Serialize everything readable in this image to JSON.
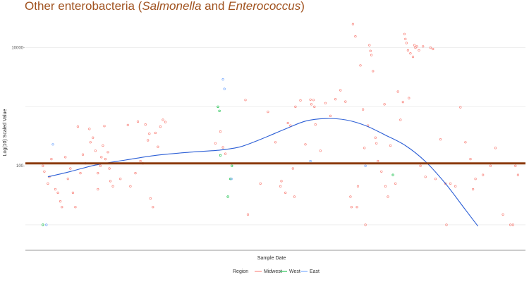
{
  "chart_data": {
    "type": "scatter",
    "title": {
      "prefix": "Other enterobacteria (",
      "italic1": "Salmonella",
      "middle": " and ",
      "italic2": "Enterococcus",
      "suffix": ")"
    },
    "xlabel": "Sample Date",
    "ylabel": "Log(10) Scaled Value",
    "y_scale": "log10",
    "ylim": [
      4.5,
      35000
    ],
    "grid": true,
    "y_ticks": [
      {
        "value": 100,
        "label": "100-"
      },
      {
        "value": 10000,
        "label": "10000-"
      }
    ],
    "y_gridlines": [
      10,
      100,
      1000,
      10000
    ],
    "x_date_labels_shown": false,
    "xlim": [
      0,
      100
    ],
    "reference_line": {
      "value": 110,
      "color": "#8b3a0e"
    },
    "legend": {
      "title": "Region",
      "position": "bottom",
      "entries": [
        {
          "name": "Midwest",
          "color": "#f8766d"
        },
        {
          "name": "West",
          "color": "#00ba38"
        },
        {
          "name": "East",
          "color": "#619cff"
        }
      ]
    },
    "trend_line": {
      "color": "#2c5fd6",
      "points": [
        [
          4.5,
          65
        ],
        [
          9,
          80
        ],
        [
          14,
          103
        ],
        [
          20,
          125
        ],
        [
          26,
          150
        ],
        [
          33,
          170
        ],
        [
          39,
          185
        ],
        [
          43,
          210
        ],
        [
          47,
          280
        ],
        [
          52,
          420
        ],
        [
          56,
          570
        ],
        [
          60,
          630
        ],
        [
          64,
          600
        ],
        [
          68,
          480
        ],
        [
          72,
          330
        ],
        [
          76,
          220
        ],
        [
          80,
          118
        ],
        [
          84,
          50
        ],
        [
          88,
          18
        ],
        [
          90.5,
          9.5
        ]
      ]
    },
    "series": [
      {
        "name": "Midwest",
        "color": "#f8766d",
        "points": [
          [
            3.5,
            100
          ],
          [
            3.8,
            80
          ],
          [
            4.5,
            50
          ],
          [
            4.8,
            65
          ],
          [
            5.2,
            130
          ],
          [
            6,
            40
          ],
          [
            6.5,
            35
          ],
          [
            7,
            25
          ],
          [
            7.3,
            20
          ],
          [
            8,
            140
          ],
          [
            8.5,
            60
          ],
          [
            9,
            90
          ],
          [
            9.5,
            35
          ],
          [
            10,
            20
          ],
          [
            10.5,
            460
          ],
          [
            11,
            75
          ],
          [
            11.5,
            155
          ],
          [
            12,
            110
          ],
          [
            12.8,
            420
          ],
          [
            13,
            250
          ],
          [
            13.5,
            300
          ],
          [
            14,
            180
          ],
          [
            14.5,
            75
          ],
          [
            14.5,
            40
          ],
          [
            15,
            100
          ],
          [
            15.2,
            140
          ],
          [
            15.5,
            220
          ],
          [
            15.8,
            470
          ],
          [
            16,
            130
          ],
          [
            16.5,
            170
          ],
          [
            16.8,
            90
          ],
          [
            17,
            55
          ],
          [
            17.5,
            45
          ],
          [
            19,
            60
          ],
          [
            20.5,
            490
          ],
          [
            21,
            45
          ],
          [
            22,
            75
          ],
          [
            22.5,
            560
          ],
          [
            23,
            120
          ],
          [
            23.5,
            110
          ],
          [
            24,
            500
          ],
          [
            24.5,
            270
          ],
          [
            24.8,
            350
          ],
          [
            25,
            28
          ],
          [
            25.5,
            20
          ],
          [
            26,
            360
          ],
          [
            26.5,
            210
          ],
          [
            27,
            460
          ],
          [
            27.5,
            600
          ],
          [
            28,
            550
          ],
          [
            38,
            240
          ],
          [
            39,
            380
          ],
          [
            39.5,
            205
          ],
          [
            40,
            160
          ],
          [
            44,
            1300
          ],
          [
            44.5,
            15
          ],
          [
            47,
            50
          ],
          [
            48.5,
            820
          ],
          [
            50,
            250
          ],
          [
            51,
            45
          ],
          [
            51.2,
            55
          ],
          [
            52,
            35
          ],
          [
            52.5,
            530
          ],
          [
            53,
            480
          ],
          [
            53.5,
            90
          ],
          [
            53.8,
            30
          ],
          [
            54,
            1000
          ],
          [
            55,
            1280
          ],
          [
            56,
            230
          ],
          [
            57,
            1320
          ],
          [
            57.2,
            1100
          ],
          [
            57.6,
            1300
          ],
          [
            57.8,
            1000
          ],
          [
            58,
            500
          ],
          [
            59,
            180
          ],
          [
            60,
            1150
          ],
          [
            61,
            700
          ],
          [
            62,
            1340
          ],
          [
            63,
            1900
          ],
          [
            64,
            1220
          ],
          [
            65,
            30
          ],
          [
            65.2,
            20
          ],
          [
            65.5,
            25000
          ],
          [
            66,
            15500
          ],
          [
            66.3,
            20
          ],
          [
            66.5,
            45
          ],
          [
            67,
            5000
          ],
          [
            67.5,
            900
          ],
          [
            67.8,
            200
          ],
          [
            68,
            10
          ],
          [
            68.5,
            480
          ],
          [
            68.8,
            11000
          ],
          [
            69,
            8800
          ],
          [
            69.2,
            7500
          ],
          [
            69.5,
            4000
          ],
          [
            70,
            300
          ],
          [
            70.2,
            240
          ],
          [
            70.5,
            120
          ],
          [
            71.2,
            80
          ],
          [
            71.8,
            1100
          ],
          [
            72,
            45
          ],
          [
            72.5,
            30
          ],
          [
            73,
            220
          ],
          [
            74,
            50
          ],
          [
            74.5,
            1800
          ],
          [
            75,
            600
          ],
          [
            75.5,
            1200
          ],
          [
            75.8,
            17000
          ],
          [
            76,
            14000
          ],
          [
            76.2,
            12000
          ],
          [
            76.5,
            9000
          ],
          [
            76.7,
            1400
          ],
          [
            77,
            8000
          ],
          [
            77.5,
            7000
          ],
          [
            77.8,
            11000
          ],
          [
            78,
            10000
          ],
          [
            78.3,
            10500
          ],
          [
            78.7,
            9000
          ],
          [
            79,
            100
          ],
          [
            79.5,
            10500
          ],
          [
            80,
            65
          ],
          [
            81,
            10000
          ],
          [
            81.5,
            9500
          ],
          [
            82,
            60
          ],
          [
            83,
            280
          ],
          [
            84,
            50
          ],
          [
            84.2,
            10
          ],
          [
            85,
            50
          ],
          [
            86,
            45
          ],
          [
            87,
            980
          ],
          [
            88,
            250
          ],
          [
            89,
            130
          ],
          [
            89.5,
            40
          ],
          [
            90,
            60
          ],
          [
            91.5,
            70
          ],
          [
            93,
            100
          ],
          [
            94,
            200
          ],
          [
            95.5,
            15
          ],
          [
            97,
            10
          ],
          [
            97.5,
            10
          ],
          [
            98,
            100
          ],
          [
            98.5,
            70
          ]
        ]
      },
      {
        "name": "West",
        "color": "#00ba38",
        "points": [
          [
            3.5,
            10
          ],
          [
            38.5,
            1000
          ],
          [
            38.8,
            850
          ],
          [
            39,
            150
          ],
          [
            40.5,
            30
          ],
          [
            41,
            60
          ],
          [
            41.3,
            100
          ],
          [
            73.5,
            70
          ]
        ]
      },
      {
        "name": "East",
        "color": "#619cff",
        "points": [
          [
            4.2,
            10
          ],
          [
            5.5,
            230
          ],
          [
            39.5,
            2900
          ],
          [
            39.8,
            2000
          ],
          [
            41.2,
            60
          ],
          [
            57,
            120
          ],
          [
            68,
            100
          ]
        ]
      }
    ]
  }
}
